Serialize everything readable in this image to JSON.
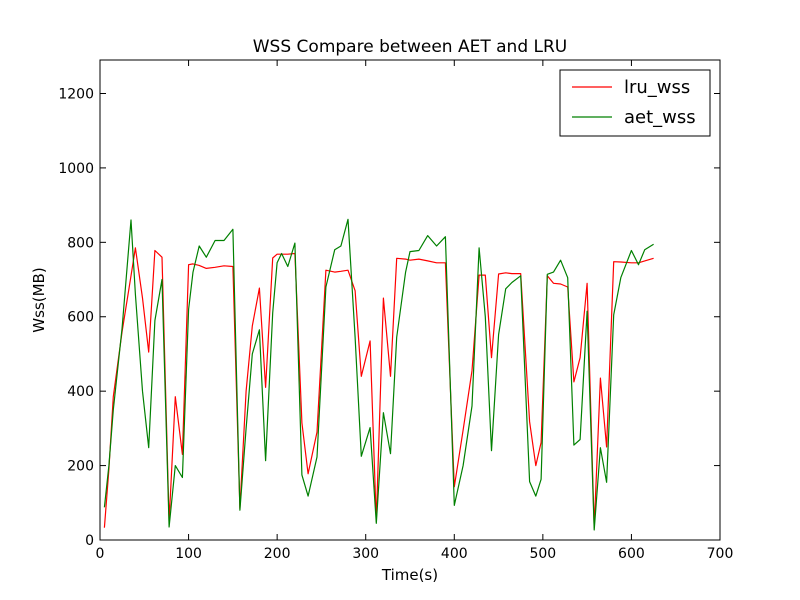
{
  "chart_data": {
    "type": "line",
    "title": "WSS Compare between AET and LRU",
    "xlabel": "Time(s)",
    "ylabel": "Wss(MB)",
    "xlim": [
      0,
      700
    ],
    "ylim": [
      0,
      1290
    ],
    "xticks": [
      "0",
      "100",
      "200",
      "300",
      "400",
      "500",
      "600",
      "700"
    ],
    "yticks": [
      "0",
      "200",
      "400",
      "600",
      "800",
      "1000",
      "1200"
    ],
    "grid": false,
    "legend_position": "top-right",
    "series": [
      {
        "name": "lru_wss",
        "color": "#ff0000",
        "x": [
          5,
          10,
          15,
          25,
          35,
          40,
          48,
          55,
          62,
          70,
          78,
          85,
          93,
          100,
          105,
          112,
          120,
          130,
          140,
          150,
          158,
          165,
          172,
          180,
          187,
          195,
          200,
          205,
          212,
          220,
          228,
          235,
          245,
          255,
          265,
          272,
          280,
          288,
          295,
          305,
          312,
          320,
          328,
          335,
          345,
          350,
          360,
          370,
          380,
          390,
          400,
          410,
          420,
          428,
          435,
          442,
          450,
          458,
          465,
          475,
          485,
          492,
          498,
          505,
          512,
          520,
          528,
          535,
          542,
          550,
          558,
          565,
          572,
          580,
          588,
          600,
          608,
          615,
          625
        ],
        "y": [
          33,
          190,
          385,
          560,
          710,
          785,
          650,
          505,
          778,
          760,
          50,
          385,
          230,
          740,
          742,
          738,
          730,
          733,
          737,
          735,
          85,
          400,
          575,
          677,
          410,
          758,
          768,
          768,
          768,
          770,
          315,
          178,
          290,
          725,
          720,
          722,
          725,
          670,
          440,
          535,
          50,
          650,
          440,
          757,
          755,
          752,
          755,
          750,
          745,
          745,
          143,
          295,
          455,
          712,
          712,
          490,
          715,
          718,
          716,
          716,
          318,
          200,
          262,
          710,
          690,
          688,
          680,
          425,
          490,
          690,
          33,
          435,
          250,
          748,
          747,
          745,
          745,
          750,
          757
        ]
      },
      {
        "name": "aet_wss",
        "color": "#008000",
        "x": [
          5,
          10,
          15,
          25,
          35,
          40,
          48,
          55,
          62,
          70,
          78,
          85,
          93,
          100,
          105,
          112,
          120,
          130,
          140,
          150,
          158,
          165,
          172,
          180,
          187,
          195,
          200,
          205,
          212,
          220,
          228,
          235,
          245,
          255,
          265,
          272,
          280,
          288,
          295,
          305,
          312,
          320,
          328,
          335,
          345,
          350,
          360,
          370,
          380,
          390,
          400,
          410,
          420,
          428,
          435,
          442,
          450,
          458,
          465,
          475,
          485,
          492,
          498,
          505,
          512,
          520,
          528,
          535,
          542,
          550,
          558,
          565,
          572,
          580,
          588,
          600,
          608,
          615,
          625
        ],
        "y": [
          88,
          200,
          350,
          570,
          860,
          660,
          400,
          248,
          590,
          700,
          35,
          200,
          168,
          620,
          720,
          790,
          760,
          805,
          805,
          835,
          80,
          300,
          500,
          565,
          213,
          610,
          745,
          770,
          735,
          798,
          175,
          118,
          223,
          680,
          780,
          790,
          862,
          545,
          225,
          302,
          45,
          342,
          232,
          545,
          720,
          775,
          778,
          818,
          790,
          815,
          93,
          200,
          360,
          785,
          600,
          240,
          552,
          675,
          692,
          710,
          157,
          118,
          163,
          714,
          720,
          752,
          705,
          255,
          270,
          615,
          27,
          248,
          155,
          605,
          705,
          778,
          740,
          780,
          795
        ]
      }
    ]
  }
}
